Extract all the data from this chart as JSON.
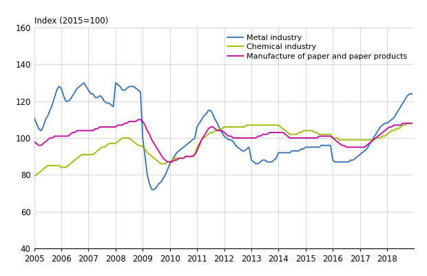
{
  "title": "Index (2015=100)",
  "ylim": [
    40,
    160
  ],
  "xlim": [
    2005.0,
    2019.0
  ],
  "yticks": [
    40,
    60,
    80,
    100,
    120,
    140,
    160
  ],
  "xticks": [
    2005,
    2006,
    2007,
    2008,
    2009,
    2010,
    2011,
    2012,
    2013,
    2014,
    2015,
    2016,
    2017,
    2018
  ],
  "legend": [
    "Metal industry",
    "Chemical industry",
    "Manufacture of paper and paper products"
  ],
  "colors": [
    "#3070b4",
    "#a0b800",
    "#c800a0"
  ],
  "linewidth": 1.3,
  "metal": [
    111,
    108,
    105,
    104,
    106,
    110,
    112,
    115,
    118,
    122,
    126,
    128,
    127,
    123,
    120,
    120,
    121,
    123,
    125,
    127,
    128,
    129,
    130,
    128,
    126,
    124,
    124,
    122,
    122,
    123,
    122,
    120,
    119,
    119,
    118,
    117,
    130,
    129,
    128,
    126,
    126,
    127,
    128,
    128,
    128,
    127,
    126,
    125,
    100,
    90,
    80,
    75,
    72,
    72,
    73,
    75,
    76,
    78,
    80,
    83,
    86,
    88,
    90,
    92,
    93,
    94,
    95,
    96,
    97,
    98,
    99,
    100,
    106,
    108,
    110,
    112,
    113,
    115,
    115,
    113,
    110,
    108,
    105,
    103,
    101,
    100,
    99,
    99,
    98,
    96,
    95,
    94,
    93,
    93,
    94,
    95,
    88,
    87,
    86,
    86,
    87,
    88,
    88,
    87,
    87,
    87,
    88,
    89,
    92,
    92,
    92,
    92,
    92,
    92,
    93,
    93,
    93,
    93,
    94,
    94,
    95,
    95,
    95,
    95,
    95,
    95,
    95,
    96,
    96,
    96,
    96,
    96,
    88,
    87,
    87,
    87,
    87,
    87,
    87,
    87,
    88,
    88,
    89,
    90,
    91,
    92,
    93,
    94,
    96,
    98,
    100,
    102,
    104,
    106,
    107,
    108,
    108,
    109,
    110,
    111,
    113,
    115,
    117,
    119,
    121,
    123,
    124,
    124
  ],
  "chemical": [
    79,
    80,
    81,
    82,
    83,
    84,
    85,
    85,
    85,
    85,
    85,
    85,
    84,
    84,
    84,
    85,
    86,
    87,
    88,
    89,
    90,
    91,
    91,
    91,
    91,
    91,
    91,
    92,
    93,
    94,
    95,
    95,
    96,
    97,
    97,
    97,
    97,
    98,
    99,
    100,
    100,
    100,
    100,
    99,
    98,
    97,
    96,
    96,
    95,
    94,
    92,
    91,
    90,
    89,
    88,
    87,
    86,
    86,
    86,
    87,
    87,
    88,
    89,
    89,
    89,
    89,
    89,
    90,
    90,
    90,
    90,
    91,
    95,
    97,
    99,
    100,
    101,
    102,
    103,
    103,
    104,
    104,
    105,
    105,
    106,
    106,
    106,
    106,
    106,
    106,
    106,
    106,
    106,
    106,
    107,
    107,
    107,
    107,
    107,
    107,
    107,
    107,
    107,
    107,
    107,
    107,
    107,
    107,
    107,
    106,
    105,
    104,
    103,
    102,
    102,
    102,
    102,
    103,
    103,
    104,
    104,
    104,
    104,
    104,
    103,
    103,
    102,
    102,
    102,
    102,
    102,
    102,
    100,
    100,
    100,
    99,
    99,
    99,
    99,
    99,
    99,
    99,
    99,
    99,
    99,
    99,
    99,
    99,
    99,
    99,
    99,
    100,
    100,
    100,
    101,
    101,
    102,
    103,
    104,
    104,
    105,
    105,
    106,
    107,
    107,
    108,
    108,
    108
  ],
  "paper": [
    98,
    97,
    96,
    96,
    97,
    98,
    99,
    100,
    100,
    101,
    101,
    101,
    101,
    101,
    101,
    101,
    102,
    103,
    103,
    104,
    104,
    104,
    104,
    104,
    104,
    104,
    104,
    105,
    105,
    106,
    106,
    106,
    106,
    106,
    106,
    106,
    106,
    107,
    107,
    107,
    108,
    108,
    109,
    109,
    109,
    109,
    110,
    110,
    109,
    107,
    104,
    102,
    99,
    97,
    95,
    93,
    91,
    89,
    88,
    87,
    87,
    87,
    88,
    88,
    89,
    89,
    89,
    90,
    90,
    90,
    90,
    91,
    93,
    96,
    99,
    101,
    103,
    105,
    106,
    106,
    105,
    104,
    104,
    104,
    103,
    102,
    101,
    101,
    100,
    100,
    100,
    100,
    100,
    100,
    100,
    100,
    100,
    100,
    100,
    101,
    101,
    102,
    102,
    102,
    103,
    103,
    103,
    103,
    103,
    103,
    103,
    102,
    101,
    100,
    100,
    100,
    100,
    100,
    100,
    100,
    100,
    100,
    100,
    100,
    100,
    100,
    101,
    101,
    101,
    101,
    101,
    101,
    100,
    99,
    98,
    97,
    96,
    96,
    95,
    95,
    95,
    95,
    95,
    95,
    95,
    95,
    95,
    96,
    97,
    98,
    99,
    100,
    101,
    102,
    103,
    104,
    105,
    106,
    106,
    107,
    107,
    107,
    107,
    108,
    108,
    108,
    108,
    108
  ]
}
